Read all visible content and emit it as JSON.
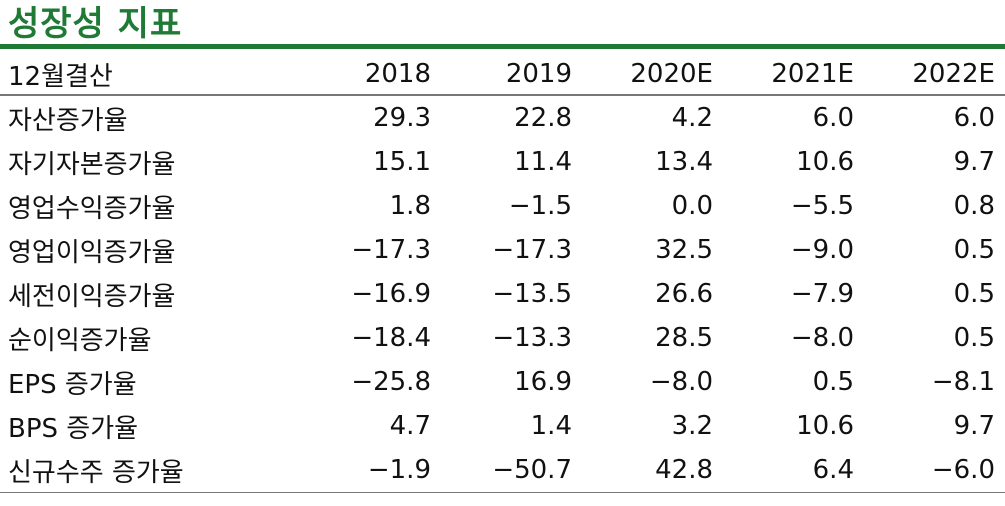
{
  "title": "성장성 지표",
  "table": {
    "headers": [
      "12월결산",
      "2018",
      "2019",
      "2020E",
      "2021E",
      "2022E"
    ],
    "rows": [
      {
        "label": "자산증가율",
        "values": [
          "29.3",
          "22.8",
          "4.2",
          "6.0",
          "6.0"
        ]
      },
      {
        "label": "자기자본증가율",
        "values": [
          "15.1",
          "11.4",
          "13.4",
          "10.6",
          "9.7"
        ]
      },
      {
        "label": "영업수익증가율",
        "values": [
          "1.8",
          "−1.5",
          "0.0",
          "−5.5",
          "0.8"
        ]
      },
      {
        "label": "영업이익증가율",
        "values": [
          "−17.3",
          "−17.3",
          "32.5",
          "−9.0",
          "0.5"
        ]
      },
      {
        "label": "세전이익증가율",
        "values": [
          "−16.9",
          "−13.5",
          "26.6",
          "−7.9",
          "0.5"
        ]
      },
      {
        "label": "순이익증가율",
        "values": [
          "−18.4",
          "−13.3",
          "28.5",
          "−8.0",
          "0.5"
        ]
      },
      {
        "label": "EPS 증가율",
        "values": [
          "−25.8",
          "16.9",
          "−8.0",
          "0.5",
          "−8.1"
        ]
      },
      {
        "label": "BPS 증가율",
        "values": [
          "4.7",
          "1.4",
          "3.2",
          "10.6",
          "9.7"
        ]
      },
      {
        "label": "신규수주 증가율",
        "values": [
          "−1.9",
          "−50.7",
          "42.8",
          "6.4",
          "−6.0"
        ]
      }
    ]
  },
  "colors": {
    "title": "#1e7a35",
    "rule": "#1e7a35",
    "text": "#111111"
  }
}
